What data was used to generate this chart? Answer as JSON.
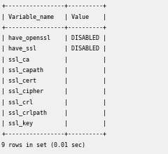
{
  "bg_color": "#f0f0f0",
  "text_color": "#000000",
  "font_family": "monospace",
  "font_size": 6.0,
  "lines": [
    "+-----------------+----------+",
    "| Variable_name   | Value    |",
    "+-----------------+----------+",
    "| have_openssl    | DISABLED |",
    "| have_ssl        | DISABLED |",
    "| ssl_ca          |          |",
    "| ssl_capath      |          |",
    "| ssl_cert        |          |",
    "| ssl_cipher      |          |",
    "| ssl_crl         |          |",
    "| ssl_crlpath     |          |",
    "| ssl_key         |          |",
    "+-----------------+----------+",
    "9 rows in set (0.01 sec)"
  ]
}
